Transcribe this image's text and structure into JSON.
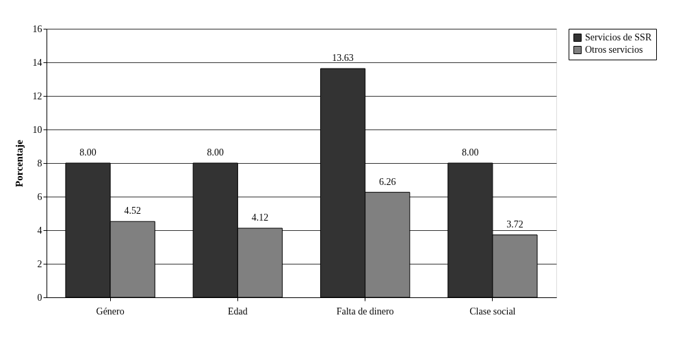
{
  "chart_data": {
    "type": "bar",
    "ylabel": "Porcentaje",
    "categories": [
      "Género",
      "Edad",
      "Falta de dinero",
      "Clase social"
    ],
    "series": [
      {
        "name": "Servicios de SSR",
        "color": "#333333",
        "values": [
          8.0,
          8.0,
          13.63,
          8.0
        ],
        "value_labels": [
          "8.00",
          "8.00",
          "13.63",
          "8.00"
        ]
      },
      {
        "name": "Otros servicios",
        "color": "#808080",
        "values": [
          4.52,
          4.12,
          6.26,
          3.72
        ],
        "value_labels": [
          "4.52",
          "4.12",
          "6.26",
          "3.72"
        ]
      }
    ],
    "ylim": [
      0,
      16
    ],
    "yticks": [
      0,
      2,
      4,
      6,
      8,
      10,
      12,
      14,
      16
    ],
    "grid": "y",
    "legend": "right"
  }
}
